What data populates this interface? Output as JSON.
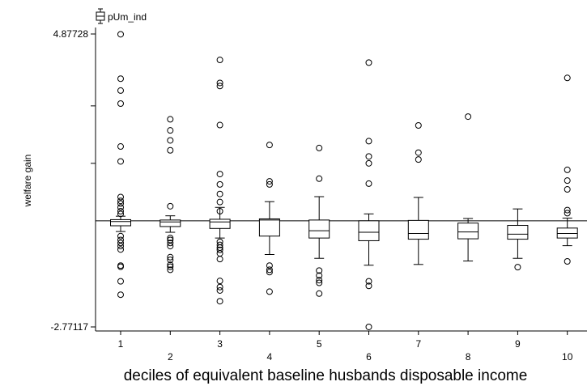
{
  "chart_data": {
    "type": "boxplot",
    "legend": {
      "label": "pUm_ind",
      "placement": "top-left",
      "icon": "boxplot-legend-icon"
    },
    "xlabel": "deciles of equivalent baseline husbands disposable income",
    "ylabel": "welfare gain",
    "ytick_labels": [
      "4.87728",
      "-2.77117"
    ],
    "ylim": [
      -2.77117,
      4.87728
    ],
    "reference_line_y": 0,
    "categories": [
      "1",
      "2",
      "3",
      "4",
      "5",
      "6",
      "7",
      "8",
      "9",
      "10"
    ],
    "boxes": [
      {
        "q1": -0.13,
        "median": -0.02,
        "q3": 0.03,
        "whisker_low": -0.28,
        "whisker_high": 0.12
      },
      {
        "q1": -0.15,
        "median": -0.03,
        "q3": 0.02,
        "whisker_low": -0.3,
        "whisker_high": 0.13
      },
      {
        "q1": -0.2,
        "median": -0.03,
        "q3": 0.04,
        "whisker_low": -0.45,
        "whisker_high": 0.35
      },
      {
        "q1": -0.4,
        "median": 0.02,
        "q3": 0.05,
        "whisker_low": -0.88,
        "whisker_high": 0.5
      },
      {
        "q1": -0.45,
        "median": -0.26,
        "q3": 0.02,
        "whisker_low": -0.98,
        "whisker_high": 0.63
      },
      {
        "q1": -0.52,
        "median": -0.3,
        "q3": 0.0,
        "whisker_low": -1.16,
        "whisker_high": 0.18
      },
      {
        "q1": -0.48,
        "median": -0.33,
        "q3": 0.01,
        "whisker_low": -1.14,
        "whisker_high": 0.61
      },
      {
        "q1": -0.47,
        "median": -0.29,
        "q3": -0.06,
        "whisker_low": -1.05,
        "whisker_high": 0.06
      },
      {
        "q1": -0.48,
        "median": -0.35,
        "q3": -0.12,
        "whisker_low": -0.98,
        "whisker_high": 0.31
      },
      {
        "q1": -0.45,
        "median": -0.33,
        "q3": -0.19,
        "whisker_low": -0.65,
        "whisker_high": 0.07
      }
    ],
    "outliers": [
      [
        4.87,
        3.71,
        3.4,
        3.06,
        1.94,
        1.55,
        0.62,
        0.52,
        0.45,
        0.35,
        0.25,
        0.18,
        -0.4,
        -0.5,
        -0.58,
        -0.66,
        -0.75,
        -1.17,
        -1.2,
        -1.58,
        -1.93
      ],
      [
        2.65,
        2.36,
        2.1,
        1.84,
        0.38,
        -0.45,
        -0.5,
        -0.58,
        -0.66,
        -0.95,
        -1.02,
        -1.15,
        -1.2,
        -1.28
      ],
      [
        4.2,
        3.6,
        3.52,
        2.5,
        1.22,
        0.95,
        0.7,
        0.49,
        0.25,
        -0.55,
        -0.63,
        -0.7,
        -0.76,
        -0.85,
        -1.0,
        -1.57,
        -1.73,
        -1.82,
        -2.1
      ],
      [
        1.98,
        1.03,
        0.95,
        -1.17,
        -1.28,
        -1.34,
        -1.85
      ],
      [
        1.9,
        1.1,
        -1.3,
        -1.43,
        -1.55,
        -1.62,
        -1.9
      ],
      [
        4.13,
        2.08,
        1.68,
        1.5,
        0.97,
        -1.58,
        -1.7,
        -2.77
      ],
      [
        2.49,
        1.78,
        1.6
      ],
      [
        2.72
      ],
      [
        -1.21
      ],
      [
        3.73,
        1.33,
        1.05,
        0.82,
        0.28,
        0.2,
        -1.06
      ]
    ]
  }
}
